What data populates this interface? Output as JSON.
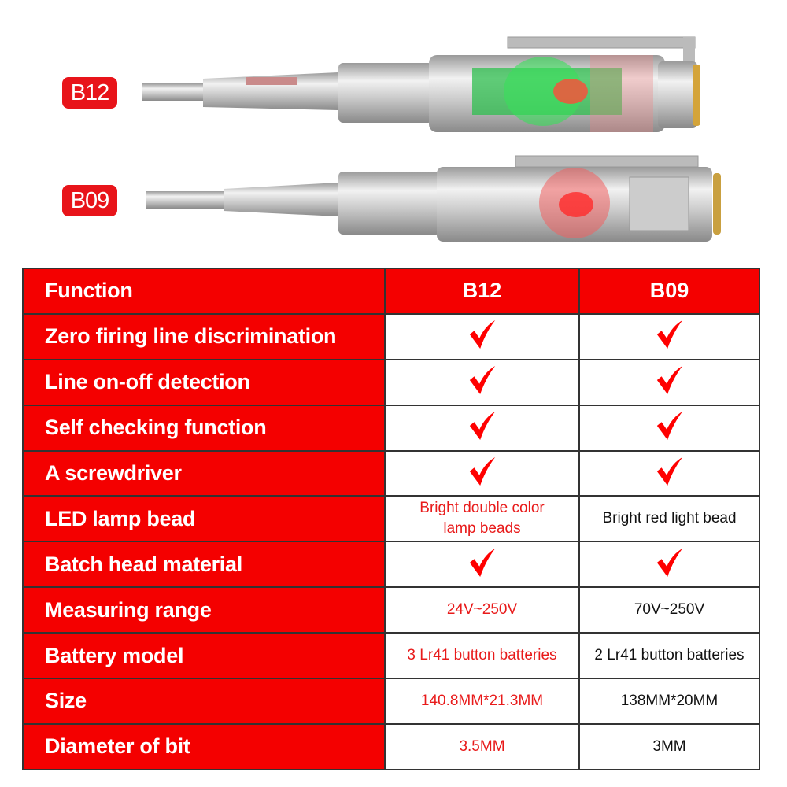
{
  "models": [
    "B12",
    "B09"
  ],
  "colors": {
    "accent": "#f40000",
    "highlight_text": "#e81a1a"
  },
  "table": {
    "header": [
      "Function",
      "B12",
      "B09"
    ],
    "rows": [
      {
        "label": "Zero firing line discrimination",
        "b12": "check",
        "b09": "check"
      },
      {
        "label": "Line on-off detection",
        "b12": "check",
        "b09": "check"
      },
      {
        "label": "Self checking function",
        "b12": "check",
        "b09": "check"
      },
      {
        "label": "A screwdriver",
        "b12": "check",
        "b09": "check"
      },
      {
        "label": "LED lamp bead",
        "b12": "Bright double color lamp beads",
        "b09": "Bright red light bead"
      },
      {
        "label": "Batch head material",
        "b12": "check",
        "b09": "check"
      },
      {
        "label": "Measuring range",
        "b12": "24V~250V",
        "b09": "70V~250V"
      },
      {
        "label": "Battery model",
        "b12": "3 Lr41 button batteries",
        "b09": "2 Lr41 button batteries"
      },
      {
        "label": "Size",
        "b12": "140.8MM*21.3MM",
        "b09": "138MM*20MM"
      },
      {
        "label": "Diameter of bit",
        "b12": "3.5MM",
        "b09": "3MM"
      }
    ]
  }
}
